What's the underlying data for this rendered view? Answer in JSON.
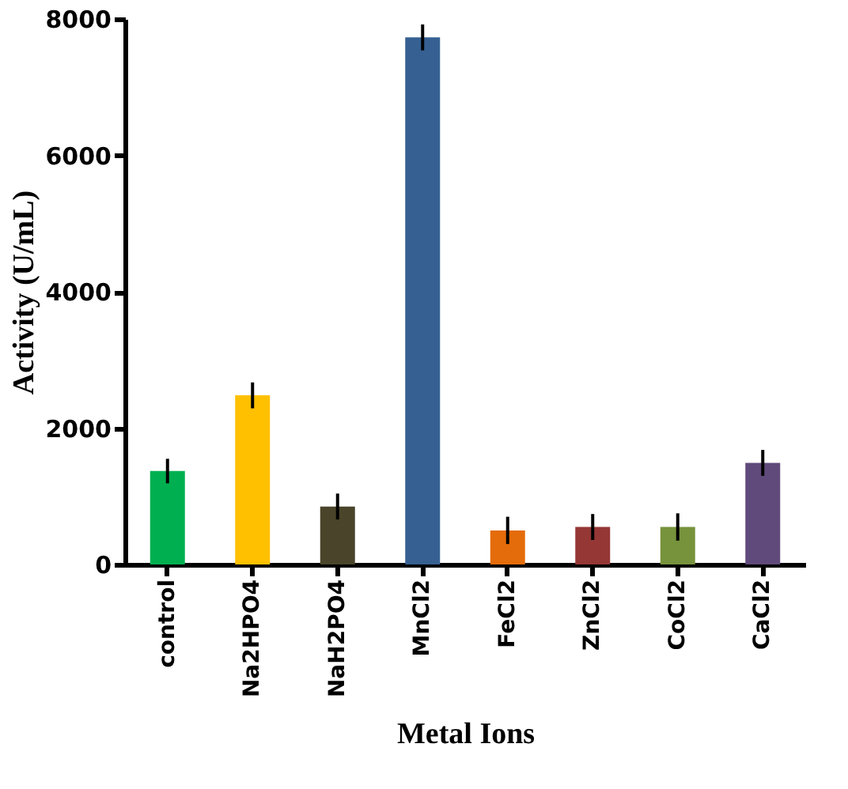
{
  "chart_data": {
    "type": "bar",
    "xlabel": "Metal Ions",
    "ylabel": "Activity (U/mL)",
    "categories": [
      "control",
      "Na2HPO4",
      "NaH2PO4",
      "MnCl2",
      "FeCl2",
      "ZnCl2",
      "CoCl2",
      "CaCl2"
    ],
    "values": [
      1370,
      2480,
      850,
      7730,
      500,
      550,
      550,
      1490
    ],
    "errors": [
      180,
      190,
      190,
      190,
      200,
      190,
      200,
      190
    ],
    "colors": [
      "#00b050",
      "#ffc000",
      "#4a452a",
      "#366092",
      "#e46c0a",
      "#953735",
      "#77933c",
      "#604a7b"
    ],
    "ylim": [
      0,
      8000
    ],
    "yticks": [
      0,
      2000,
      4000,
      6000,
      8000
    ],
    "grid": false
  }
}
